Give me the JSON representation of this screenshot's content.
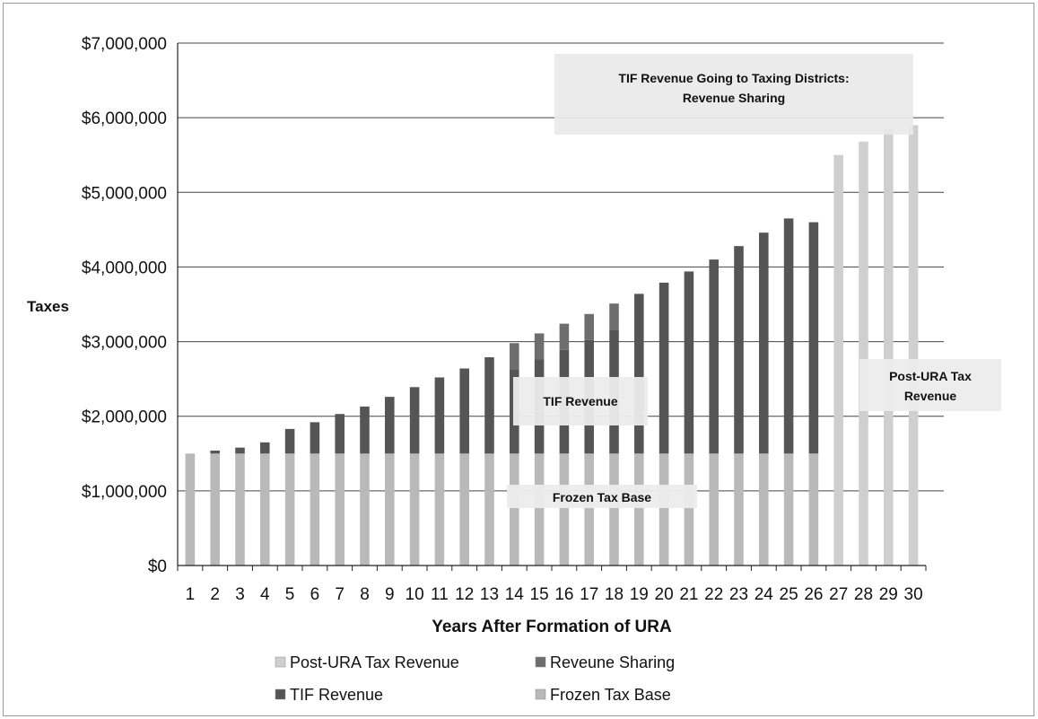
{
  "chart_data": {
    "type": "bar",
    "stacked": true,
    "title": "",
    "xlabel": "Years After Formation of URA",
    "ylabel": "Taxes",
    "ylim": [
      0,
      7000000
    ],
    "yticks": [
      0,
      1000000,
      2000000,
      3000000,
      4000000,
      5000000,
      6000000,
      7000000
    ],
    "ytick_labels": [
      "$0",
      "$1,000,000",
      "$2,000,000",
      "$3,000,000",
      "$4,000,000",
      "$5,000,000",
      "$6,000,000",
      "$7,000,000"
    ],
    "grid": "horizontal",
    "categories": [
      "1",
      "2",
      "3",
      "4",
      "5",
      "6",
      "7",
      "8",
      "9",
      "10",
      "11",
      "12",
      "13",
      "14",
      "15",
      "16",
      "17",
      "18",
      "19",
      "20",
      "21",
      "22",
      "23",
      "24",
      "25",
      "26",
      "27",
      "28",
      "29",
      "30"
    ],
    "series": [
      {
        "name": "Frozen Tax Base",
        "color": "#b9b9b9",
        "values": [
          1500000,
          1500000,
          1500000,
          1500000,
          1500000,
          1500000,
          1500000,
          1500000,
          1500000,
          1500000,
          1500000,
          1500000,
          1500000,
          1500000,
          1500000,
          1500000,
          1500000,
          1500000,
          1500000,
          1500000,
          1500000,
          1500000,
          1500000,
          1500000,
          1500000,
          1500000,
          0,
          0,
          0,
          0
        ]
      },
      {
        "name": "TIF Revenue",
        "color": "#555555",
        "values": [
          0,
          40000,
          80000,
          150000,
          330000,
          420000,
          530000,
          630000,
          760000,
          890000,
          1020000,
          1140000,
          1290000,
          1130000,
          1260000,
          1390000,
          1520000,
          1660000,
          2140000,
          2290000,
          2440000,
          2600000,
          2780000,
          2960000,
          3150000,
          3100000,
          0,
          0,
          0,
          0
        ]
      },
      {
        "name": "Reveune Sharing",
        "color": "#6e6e6e",
        "values": [
          0,
          0,
          0,
          0,
          0,
          0,
          0,
          0,
          0,
          0,
          0,
          0,
          0,
          350000,
          350000,
          350000,
          350000,
          350000,
          0,
          0,
          0,
          0,
          0,
          0,
          0,
          0,
          0,
          0,
          0,
          0
        ]
      },
      {
        "name": "Post-URA Tax Revenue",
        "color": "#cfcfcf",
        "values": [
          0,
          0,
          0,
          0,
          0,
          0,
          0,
          0,
          0,
          0,
          0,
          0,
          0,
          0,
          0,
          0,
          0,
          0,
          0,
          0,
          0,
          0,
          0,
          0,
          0,
          0,
          5500000,
          5680000,
          5850000,
          5900000
        ]
      }
    ],
    "annotations": [
      "TIF Revenue Going to Taxing Districts: Revenue Sharing",
      "TIF Revenue",
      "Frozen Tax Base",
      "Post-URA Tax Revenue"
    ],
    "legend": {
      "position": "bottom",
      "items": [
        "Post-URA Tax Revenue",
        "Reveune Sharing",
        "TIF Revenue",
        "Frozen Tax Base"
      ]
    }
  },
  "annotations": {
    "revenue_sharing_line1": "TIF Revenue Going to Taxing Districts:",
    "revenue_sharing_line2": "Revenue Sharing",
    "tif_revenue": "TIF Revenue",
    "frozen_tax_base": "Frozen Tax Base",
    "post_ura_line1": "Post-URA Tax",
    "post_ura_line2": "Revenue"
  }
}
